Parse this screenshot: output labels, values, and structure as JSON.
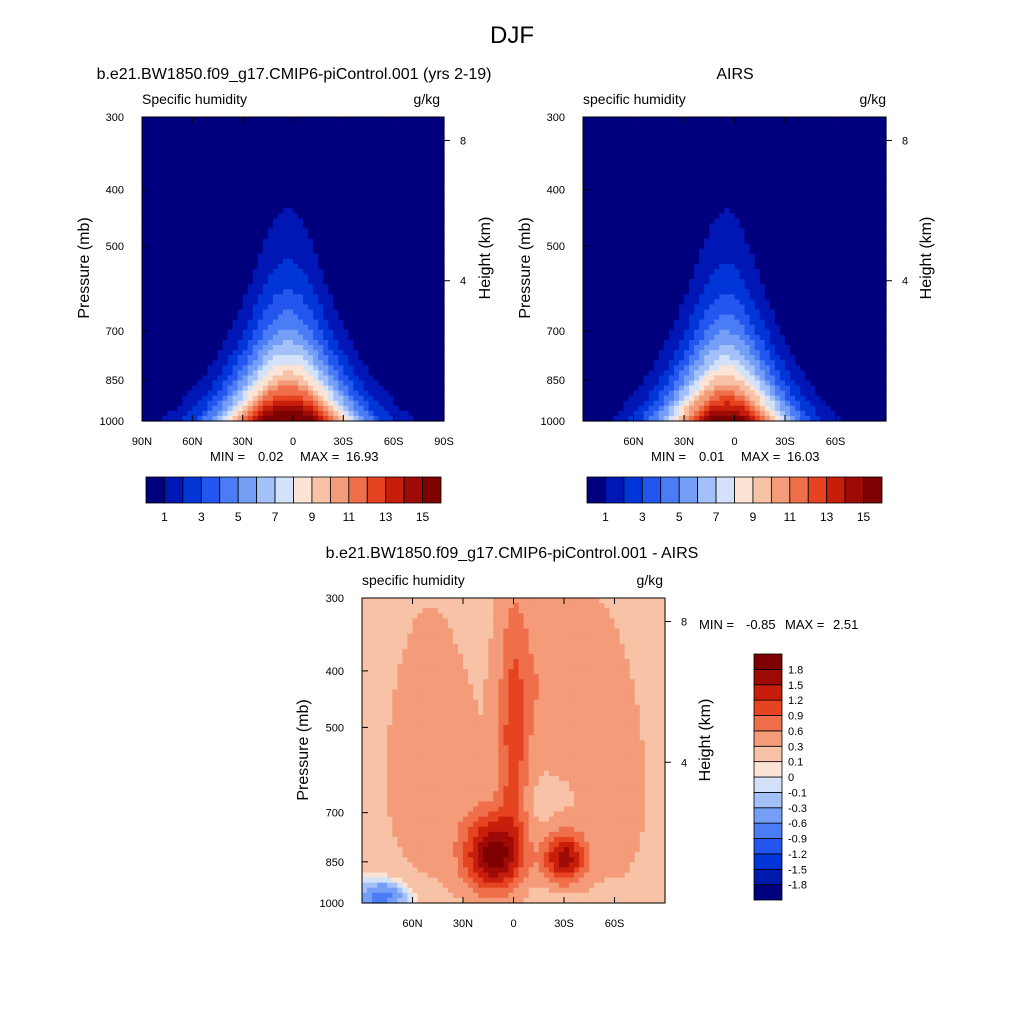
{
  "figure_title": "DJF",
  "colormap_main": [
    "#00007f",
    "#0017b5",
    "#0035d8",
    "#2356ef",
    "#4a7df5",
    "#759ff7",
    "#a3c1f8",
    "#d3e2f8",
    "#fbe4d5",
    "#f7c2a5",
    "#f49b79",
    "#f06f4b",
    "#e64420",
    "#c71e0c",
    "#9e0b07",
    "#7f0000"
  ],
  "colormap_diff": [
    "#00007f",
    "#0019ad",
    "#0035d8",
    "#2356ef",
    "#4a7df5",
    "#759ff7",
    "#a3c1f8",
    "#d3e2f8",
    "#fbe4d5",
    "#f7c2a5",
    "#f49b79",
    "#f06f4b",
    "#e64420",
    "#c71e0c",
    "#9e0b07",
    "#7f0000"
  ],
  "chart_data": [
    {
      "type": "heatmap",
      "title": "b.e21.BW1850.f09_g17.CMIP6-piControl.001 (yrs 2-19)",
      "variable_label": "Specific humidity",
      "units": "g/kg",
      "ylabel": "Pressure (mb)",
      "ylabel_right": "Height (km)",
      "x_ticks": [
        "90N",
        "60N",
        "30N",
        "0",
        "30S",
        "60S",
        "90S"
      ],
      "x_tick_values": [
        90,
        60,
        30,
        0,
        -30,
        -60,
        -90
      ],
      "xlim": [
        90,
        -90
      ],
      "y_ticks": [
        "300",
        "400",
        "500",
        "700",
        "850",
        "1000"
      ],
      "y_tick_values": [
        300,
        400,
        500,
        700,
        850,
        1000
      ],
      "ylim": [
        300,
        1000
      ],
      "y_scale": "log",
      "height_ticks": [
        "8",
        "4"
      ],
      "height_tick_values": [
        8,
        4
      ],
      "stats": {
        "min_label": "MIN =",
        "min": "0.02",
        "max_label": "MAX =",
        "max": "16.93"
      },
      "field": {
        "peak": 16.93,
        "peak_lat": 3,
        "sigma_surface": 14,
        "sigma_top": 5,
        "hill_lat": -35,
        "hill_amp": 0
      },
      "levels": [
        0,
        1,
        2,
        3,
        4,
        5,
        6,
        7,
        8,
        9,
        10,
        11,
        12,
        13,
        14,
        15,
        16
      ],
      "colorbar_labels": [
        "1",
        "3",
        "5",
        "7",
        "9",
        "11",
        "13",
        "15"
      ],
      "colorbar_label_values": [
        1,
        3,
        5,
        7,
        9,
        11,
        13,
        15
      ]
    },
    {
      "type": "heatmap",
      "title": "AIRS",
      "variable_label": "specific humidity",
      "units": "g/kg",
      "ylabel": "Pressure (mb)",
      "ylabel_right": "Height (km)",
      "x_ticks": [
        "60N",
        "30N",
        "0",
        "30S",
        "60S"
      ],
      "x_tick_values": [
        60,
        30,
        0,
        -30,
        -60
      ],
      "xlim": [
        90,
        -90
      ],
      "y_ticks": [
        "300",
        "400",
        "500",
        "700",
        "850",
        "1000"
      ],
      "y_tick_values": [
        300,
        400,
        500,
        700,
        850,
        1000
      ],
      "ylim": [
        300,
        1000
      ],
      "y_scale": "log",
      "height_ticks": [
        "8",
        "4"
      ],
      "height_tick_values": [
        8,
        4
      ],
      "stats": {
        "min_label": "MIN =",
        "min": "0.01",
        "max_label": "MAX =",
        "max": "16.03"
      },
      "field": {
        "peak": 16.03,
        "peak_lat": 5,
        "sigma_surface": 13,
        "sigma_top": 5,
        "hill_lat": -35,
        "hill_amp": 0
      },
      "levels": [
        0,
        1,
        2,
        3,
        4,
        5,
        6,
        7,
        8,
        9,
        10,
        11,
        12,
        13,
        14,
        15,
        16
      ],
      "colorbar_labels": [
        "1",
        "3",
        "5",
        "7",
        "9",
        "11",
        "13",
        "15"
      ],
      "colorbar_label_values": [
        1,
        3,
        5,
        7,
        9,
        11,
        13,
        15
      ]
    },
    {
      "type": "heatmap",
      "title": "b.e21.BW1850.f09_g17.CMIP6-piControl.001 - AIRS",
      "variable_label": "specific humidity",
      "units": "g/kg",
      "ylabel": "Pressure (mb)",
      "ylabel_right": "Height (km)",
      "x_ticks": [
        "60N",
        "30N",
        "0",
        "30S",
        "60S"
      ],
      "x_tick_values": [
        60,
        30,
        0,
        -30,
        -60
      ],
      "xlim": [
        90,
        -90
      ],
      "y_ticks": [
        "300",
        "400",
        "500",
        "700",
        "850",
        "1000"
      ],
      "y_tick_values": [
        300,
        400,
        500,
        700,
        850,
        1000
      ],
      "ylim": [
        300,
        1000
      ],
      "y_scale": "log",
      "height_ticks": [
        "8",
        "4"
      ],
      "height_tick_values": [
        8,
        4
      ],
      "stats": {
        "min_label": "MIN =",
        "min": "-0.85",
        "max_label": "MAX =",
        "max": "2.51"
      },
      "levels": [
        -2.1,
        -1.8,
        -1.5,
        -1.2,
        -0.9,
        -0.6,
        -0.3,
        -0.1,
        0,
        0.1,
        0.3,
        0.6,
        0.9,
        1.2,
        1.5,
        1.8,
        2.1
      ],
      "colorbar_labels": [
        "1.8",
        "1.5",
        "1.2",
        "0.9",
        "0.6",
        "0.3",
        "0.1",
        "0",
        "-0.1",
        "-0.3",
        "-0.6",
        "-0.9",
        "-1.2",
        "-1.5",
        "-1.8"
      ],
      "colorbar_label_values": [
        1.8,
        1.5,
        1.2,
        0.9,
        0.6,
        0.3,
        0.1,
        0,
        -0.1,
        -0.3,
        -0.6,
        -0.9,
        -1.2,
        -1.5,
        -1.8
      ],
      "diff_features": [
        {
          "lat": 12,
          "p": 830,
          "amp": 1.8,
          "sx": 12,
          "sy": 90
        },
        {
          "lat": -30,
          "p": 840,
          "amp": 1.5,
          "sx": 9,
          "sy": 60
        },
        {
          "lat": 0,
          "p": 560,
          "amp": 0.8,
          "sx": 6,
          "sy": 180
        },
        {
          "lat": -20,
          "p": 420,
          "amp": 0.45,
          "sx": 20,
          "sy": 120
        },
        {
          "lat": 50,
          "p": 600,
          "amp": 0.35,
          "sx": 22,
          "sy": 250
        },
        {
          "lat": -60,
          "p": 650,
          "amp": 0.3,
          "sx": 18,
          "sy": 250
        },
        {
          "lat": 78,
          "p": 975,
          "amp": -0.9,
          "sx": 10,
          "sy": 40
        }
      ]
    }
  ]
}
